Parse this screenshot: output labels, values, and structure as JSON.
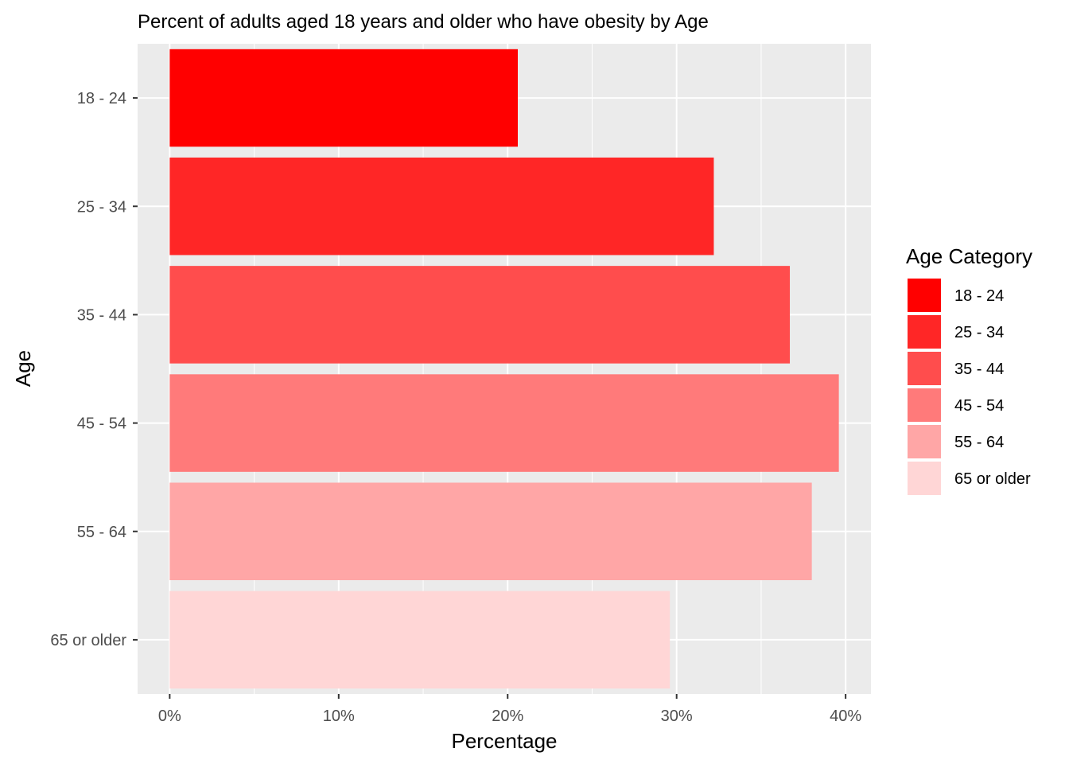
{
  "chart_data": {
    "type": "bar",
    "orientation": "horizontal",
    "title": "Percent of adults aged 18 years and older who have obesity by Age",
    "xlabel": "Percentage",
    "ylabel": "Age",
    "categories": [
      "18 - 24",
      "25 - 34",
      "35 - 44",
      "45 - 54",
      "55 - 64",
      "65 or older"
    ],
    "values": [
      20.6,
      32.2,
      36.7,
      39.6,
      38.0,
      29.6
    ],
    "colors": [
      "#FF0000",
      "#FF2626",
      "#FF4D4D",
      "#FF7A7A",
      "#FFA6A6",
      "#FFD6D6"
    ],
    "xlim": [
      -1.9,
      41.5
    ],
    "xticks": [
      0,
      10,
      20,
      30,
      40
    ],
    "xtick_labels": [
      "0%",
      "10%",
      "20%",
      "30%",
      "40%"
    ],
    "grid": true,
    "panel_background": "#EBEBEB",
    "legend": {
      "title": "Age Category",
      "position": "right",
      "entries": [
        "18 - 24",
        "25 - 34",
        "35 - 44",
        "45 - 54",
        "55 - 64",
        "65 or older"
      ]
    }
  }
}
